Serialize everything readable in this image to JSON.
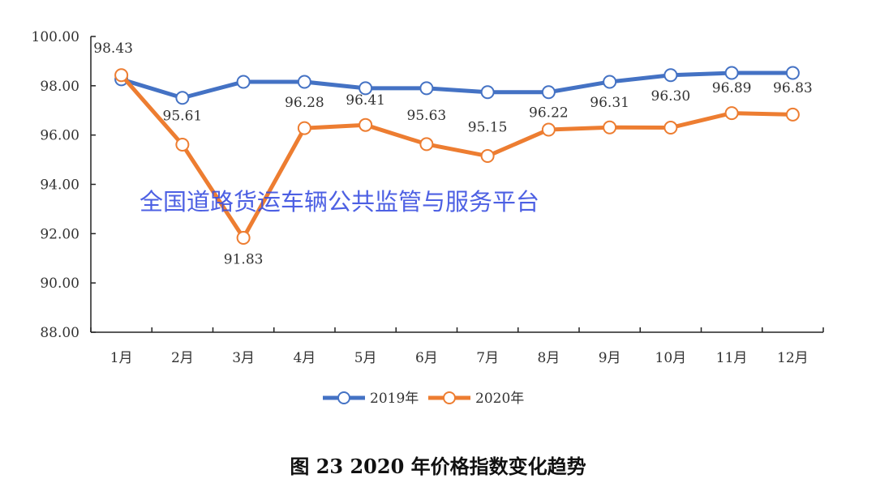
{
  "chart_data": {
    "type": "line",
    "categories": [
      "1月",
      "2月",
      "3月",
      "4月",
      "5月",
      "6月",
      "7月",
      "8月",
      "9月",
      "10月",
      "11月",
      "12月"
    ],
    "ylim": [
      88,
      100
    ],
    "yticks": [
      "88.00",
      "90.00",
      "92.00",
      "94.00",
      "96.00",
      "98.00",
      "100.00"
    ],
    "grid": false,
    "legend": "bottom",
    "series": [
      {
        "name": "2019年",
        "color": "#4472C4",
        "values": [
          98.26,
          97.51,
          98.16,
          98.16,
          97.9,
          97.9,
          97.74,
          97.74,
          98.16,
          98.43,
          98.52,
          98.52
        ],
        "labels": []
      },
      {
        "name": "2020年",
        "color": "#ED7D31",
        "values": [
          98.43,
          95.61,
          91.83,
          96.28,
          96.41,
          95.63,
          95.15,
          96.22,
          96.31,
          96.3,
          96.89,
          96.83
        ],
        "labels": [
          "98.43",
          "95.61",
          "91.83",
          "96.28",
          "96.41",
          "95.63",
          "95.15",
          "96.22",
          "96.31",
          "96.30",
          "96.89",
          "96.83"
        ]
      }
    ],
    "title": "图 23 2020 年价格指数变化趋势"
  },
  "watermark": "全国道路货运车辆公共监管与服务平台"
}
